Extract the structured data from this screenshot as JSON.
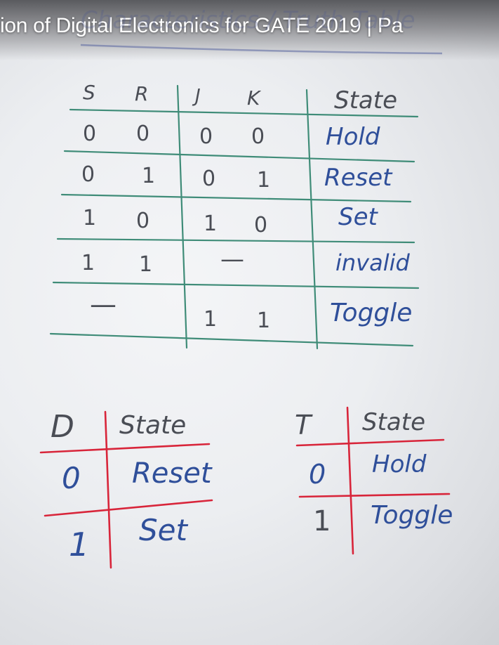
{
  "video": {
    "title": "ion of Digital Electronics for GATE 2019 | Pa",
    "faded_heading": "Characteristics / Truth Table"
  },
  "sr_jk_table": {
    "headers": [
      "S",
      "R",
      "J",
      "K",
      "State"
    ],
    "rows": [
      {
        "s": "0",
        "r": "0",
        "j": "0",
        "k": "0",
        "state": "Hold"
      },
      {
        "s": "0",
        "r": "1",
        "j": "0",
        "k": "1",
        "state": "Reset"
      },
      {
        "s": "1",
        "r": "0",
        "j": "1",
        "k": "0",
        "state": "Set"
      },
      {
        "s": "1",
        "r": "1",
        "j": "—",
        "k": "",
        "state": "invalid"
      },
      {
        "s": "—",
        "r": "",
        "j": "1",
        "k": "1",
        "state": "Toggle"
      }
    ]
  },
  "d_table": {
    "headers": [
      "D",
      "State"
    ],
    "rows": [
      {
        "input": "0",
        "state": "Reset"
      },
      {
        "input": "1",
        "state": "Set"
      }
    ]
  },
  "t_table": {
    "headers": [
      "T",
      "State"
    ],
    "rows": [
      {
        "input": "0",
        "state": "Hold"
      },
      {
        "input": "1",
        "state": "Toggle"
      }
    ]
  },
  "colors": {
    "green_lines": "#3f8c78",
    "red_lines": "#d8253a",
    "blue_ink": "#2f4f9a",
    "grey_ink": "#4a4d55"
  }
}
